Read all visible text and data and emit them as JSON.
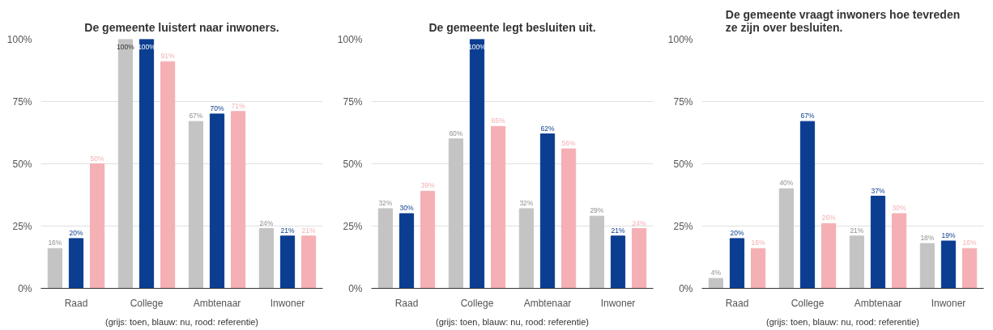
{
  "chart_data": [
    {
      "type": "bar",
      "title": "De gemeente luistert naar inwoners.",
      "categories": [
        "Raad",
        "College",
        "Ambtenaar",
        "Inwoner"
      ],
      "series": [
        {
          "color": "#c4c4c4",
          "values": [
            16,
            100,
            67,
            24
          ],
          "value_labels": [
            "16%",
            "100%",
            "67%",
            "24%"
          ]
        },
        {
          "color": "#0b3d91",
          "values": [
            20,
            100,
            70,
            21
          ],
          "value_labels": [
            "20%",
            "100%",
            "70%",
            "21%"
          ]
        },
        {
          "color": "#f4b0b4",
          "values": [
            50,
            91,
            71,
            21
          ],
          "value_labels": [
            "50%",
            "91%",
            "71%",
            "21%"
          ]
        }
      ],
      "ylim": [
        0,
        100
      ],
      "yticks": [
        {
          "value": 0,
          "label": "0%"
        },
        {
          "value": 25,
          "label": "25%"
        },
        {
          "value": 50,
          "label": "50%"
        },
        {
          "value": 75,
          "label": "75%"
        },
        {
          "value": 100,
          "label": "100%"
        }
      ],
      "grid": "y",
      "annotations": [
        "(grijs: toen, blauw: nu, rood: referentie)"
      ]
    },
    {
      "type": "bar",
      "title": "De gemeente legt besluiten uit.",
      "categories": [
        "Raad",
        "College",
        "Ambtenaar",
        "Inwoner"
      ],
      "series": [
        {
          "color": "#c4c4c4",
          "values": [
            32,
            60,
            32,
            29
          ],
          "value_labels": [
            "32%",
            "60%",
            "32%",
            "29%"
          ]
        },
        {
          "color": "#0b3d91",
          "values": [
            30,
            100,
            62,
            21
          ],
          "value_labels": [
            "30%",
            "100%",
            "62%",
            "21%"
          ]
        },
        {
          "color": "#f4b0b4",
          "values": [
            39,
            65,
            56,
            24
          ],
          "value_labels": [
            "39%",
            "65%",
            "56%",
            "24%"
          ]
        }
      ],
      "ylim": [
        0,
        100
      ],
      "yticks": [
        {
          "value": 0,
          "label": "0%"
        },
        {
          "value": 25,
          "label": "25%"
        },
        {
          "value": 50,
          "label": "50%"
        },
        {
          "value": 75,
          "label": "75%"
        },
        {
          "value": 100,
          "label": "100%"
        }
      ],
      "grid": "y",
      "annotations": [
        "(grijs: toen, blauw: nu, rood: referentie)"
      ]
    },
    {
      "type": "bar",
      "title": "De gemeente vraagt inwoners hoe tevreden ze zijn over besluiten.",
      "categories": [
        "Raad",
        "College",
        "Ambtenaar",
        "Inwoner"
      ],
      "series": [
        {
          "color": "#c4c4c4",
          "values": [
            4,
            40,
            21,
            18
          ],
          "value_labels": [
            "4%",
            "40%",
            "21%",
            "18%"
          ]
        },
        {
          "color": "#0b3d91",
          "values": [
            20,
            67,
            37,
            19
          ],
          "value_labels": [
            "20%",
            "67%",
            "37%",
            "19%"
          ]
        },
        {
          "color": "#f4b0b4",
          "values": [
            16,
            26,
            30,
            16
          ],
          "value_labels": [
            "16%",
            "26%",
            "30%",
            "16%"
          ]
        }
      ],
      "ylim": [
        0,
        100
      ],
      "yticks": [
        {
          "value": 0,
          "label": "0%"
        },
        {
          "value": 25,
          "label": "25%"
        },
        {
          "value": 50,
          "label": "50%"
        },
        {
          "value": 75,
          "label": "75%"
        },
        {
          "value": 100,
          "label": "100%"
        }
      ],
      "grid": "y",
      "annotations": [
        "(grijs: toen, blauw: nu, rood: referentie)"
      ]
    }
  ]
}
